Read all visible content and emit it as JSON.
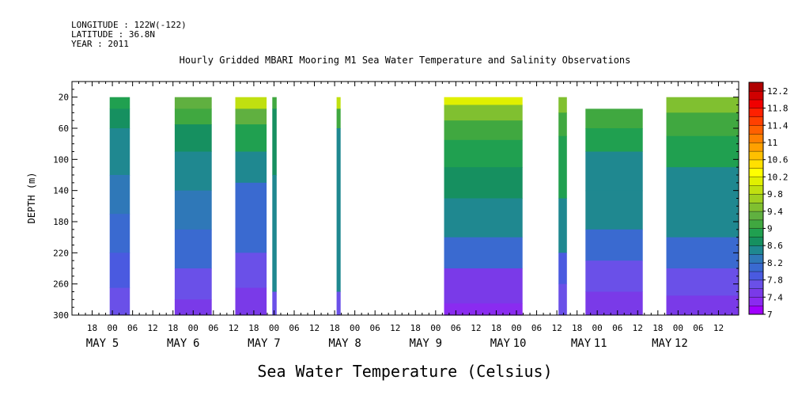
{
  "header": {
    "longitude": "LONGITUDE : 122W(-122)",
    "latitude": "LATITUDE : 36.8N",
    "year": "YEAR : 2011"
  },
  "chart_data": {
    "type": "heatmap",
    "title": "Hourly Gridded MBARI Mooring M1 Sea Water Temperature and Salinity Observations",
    "ylabel": "DEPTH (m)",
    "xlabel": "Sea Water Temperature (Celsius)",
    "ylim": [
      300,
      0
    ],
    "y_ticks": [
      20,
      60,
      100,
      140,
      180,
      220,
      260,
      300
    ],
    "x_range_hours": [
      -12,
      186
    ],
    "hour_tick_labels": [
      "18",
      "00",
      "06",
      "12",
      "18",
      "00",
      "06",
      "12",
      "18",
      "00",
      "06",
      "12",
      "18",
      "00",
      "06",
      "12",
      "18",
      "00",
      "06",
      "12",
      "18",
      "00",
      "06",
      "12",
      "18",
      "00",
      "06",
      "12",
      "18",
      "00",
      "06",
      "12"
    ],
    "day_labels": [
      {
        "month": "MAY",
        "day": "5"
      },
      {
        "month": "MAY",
        "day": "6"
      },
      {
        "month": "MAY",
        "day": "7"
      },
      {
        "month": "MAY",
        "day": "8"
      },
      {
        "month": "MAY",
        "day": "9"
      },
      {
        "month": "MAY",
        "day": "10"
      },
      {
        "month": "MAY",
        "day": "11"
      },
      {
        "month": "MAY",
        "day": "12"
      }
    ],
    "colorbar": {
      "min": 7.0,
      "max": 12.4,
      "step": 0.2,
      "labels": [
        "12.2",
        "11.8",
        "11.4",
        "11",
        "10.6",
        "10.2",
        "9.8",
        "9.4",
        "9",
        "8.6",
        "8.2",
        "7.8",
        "7.4",
        "7"
      ],
      "colors": [
        "#a000ff",
        "#8a2bf0",
        "#7a3ae8",
        "#6a50e8",
        "#4a5ae0",
        "#3a6ad0",
        "#2f78b8",
        "#1f8890",
        "#169060",
        "#20a050",
        "#40a840",
        "#60b040",
        "#80c030",
        "#a0d020",
        "#c0e010",
        "#e0f000",
        "#ffff00",
        "#ffe000",
        "#ffc000",
        "#ffa000",
        "#ff8000",
        "#ff6000",
        "#ff4000",
        "#ff2000",
        "#f00000",
        "#d00000",
        "#b00000"
      ]
    },
    "columns": [
      {
        "start_hour": -0.8,
        "end_hour": 5.2,
        "top_depth": 20,
        "bands": [
          [
            20,
            8.9
          ],
          [
            35,
            8.7
          ],
          [
            60,
            8.5
          ],
          [
            120,
            8.3
          ],
          [
            170,
            8.1
          ],
          [
            220,
            7.9
          ],
          [
            265,
            7.7
          ]
        ]
      },
      {
        "start_hour": 18.5,
        "end_hour": 29.5,
        "top_depth": 20,
        "bands": [
          [
            20,
            9.3
          ],
          [
            35,
            9.0
          ],
          [
            55,
            8.7
          ],
          [
            90,
            8.5
          ],
          [
            140,
            8.3
          ],
          [
            190,
            8.0
          ],
          [
            240,
            7.7
          ],
          [
            280,
            7.5
          ]
        ]
      },
      {
        "start_hour": 36.5,
        "end_hour": 45.8,
        "top_depth": 20,
        "bands": [
          [
            20,
            9.9
          ],
          [
            35,
            9.3
          ],
          [
            55,
            8.8
          ],
          [
            90,
            8.5
          ],
          [
            130,
            8.2
          ],
          [
            170,
            8.0
          ],
          [
            220,
            7.8
          ],
          [
            265,
            7.6
          ]
        ]
      },
      {
        "start_hour": 47.5,
        "end_hour": 48.8,
        "top_depth": 20,
        "bands": [
          [
            20,
            9.0
          ],
          [
            35,
            8.7
          ],
          [
            120,
            8.6
          ],
          [
            270,
            7.7
          ]
        ]
      },
      {
        "start_hour": 66.6,
        "end_hour": 67.8,
        "top_depth": 20,
        "bands": [
          [
            20,
            9.8
          ],
          [
            35,
            9.0
          ],
          [
            60,
            8.6
          ],
          [
            270,
            7.7
          ]
        ]
      },
      {
        "start_hour": 98.5,
        "end_hour": 121.8,
        "top_depth": 20,
        "bands": [
          [
            20,
            10.1
          ],
          [
            30,
            9.5
          ],
          [
            50,
            9.1
          ],
          [
            75,
            8.9
          ],
          [
            110,
            8.7
          ],
          [
            150,
            8.4
          ],
          [
            200,
            8.0
          ],
          [
            240,
            7.5
          ],
          [
            285,
            7.3
          ]
        ]
      },
      {
        "start_hour": 132.5,
        "end_hour": 135.0,
        "top_depth": 20,
        "bands": [
          [
            20,
            9.4
          ],
          [
            40,
            9.0
          ],
          [
            70,
            8.8
          ],
          [
            150,
            8.4
          ],
          [
            220,
            7.9
          ],
          [
            260,
            7.7
          ]
        ]
      },
      {
        "start_hour": 140.5,
        "end_hour": 157.5,
        "top_depth": 35,
        "bands": [
          [
            35,
            9.1
          ],
          [
            60,
            8.9
          ],
          [
            90,
            8.6
          ],
          [
            140,
            8.4
          ],
          [
            190,
            8.1
          ],
          [
            230,
            7.8
          ],
          [
            270,
            7.5
          ]
        ]
      },
      {
        "start_hour": 164.5,
        "end_hour": 186.0,
        "top_depth": 20,
        "bands": [
          [
            20,
            9.5
          ],
          [
            40,
            9.1
          ],
          [
            70,
            8.8
          ],
          [
            110,
            8.6
          ],
          [
            150,
            8.4
          ],
          [
            200,
            8.1
          ],
          [
            240,
            7.8
          ],
          [
            275,
            7.6
          ]
        ]
      }
    ]
  }
}
